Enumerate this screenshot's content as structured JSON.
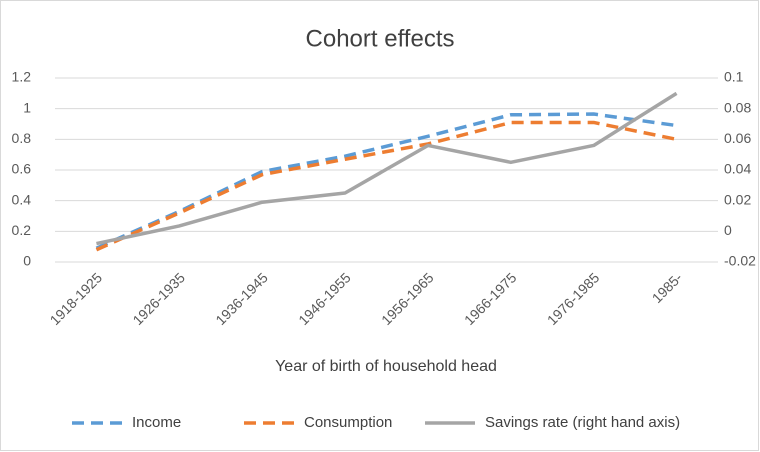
{
  "chart_data": {
    "type": "line",
    "title": "Cohort effects",
    "x_label": "Year of birth of household head",
    "categories": [
      "1918-1925",
      "1926-1935",
      "1936-1945",
      "1946-1955",
      "1956-1965",
      "1966-1975",
      "1976-1985",
      "1985-"
    ],
    "series": [
      {
        "name": "Income",
        "color": "#5b9bd5",
        "dash": true,
        "values": [
          0.09,
          0.33,
          0.59,
          0.69,
          0.82,
          0.96,
          0.965,
          0.89
        ]
      },
      {
        "name": "Consumption",
        "color": "#ed7d31",
        "dash": true,
        "values": [
          0.08,
          0.32,
          0.57,
          0.67,
          0.77,
          0.91,
          0.91,
          0.8
        ]
      },
      {
        "name": "Savings rate (right hand axis)",
        "color": "#a5a5a5",
        "dash": false,
        "axis": "y2",
        "values": [
          -0.008,
          0.0035,
          0.019,
          0.025,
          0.056,
          0.045,
          0.056,
          0.09
        ]
      }
    ],
    "ylim": [
      0,
      1.2
    ],
    "yticks": [
      0,
      0.2,
      0.4,
      0.6,
      0.8,
      1,
      1.2
    ],
    "y2lim": [
      -0.02,
      0.1
    ],
    "y2ticks": [
      -0.02,
      0,
      0.02,
      0.04,
      0.06,
      0.08,
      0.1
    ],
    "grid": true,
    "legend": "bottom"
  }
}
